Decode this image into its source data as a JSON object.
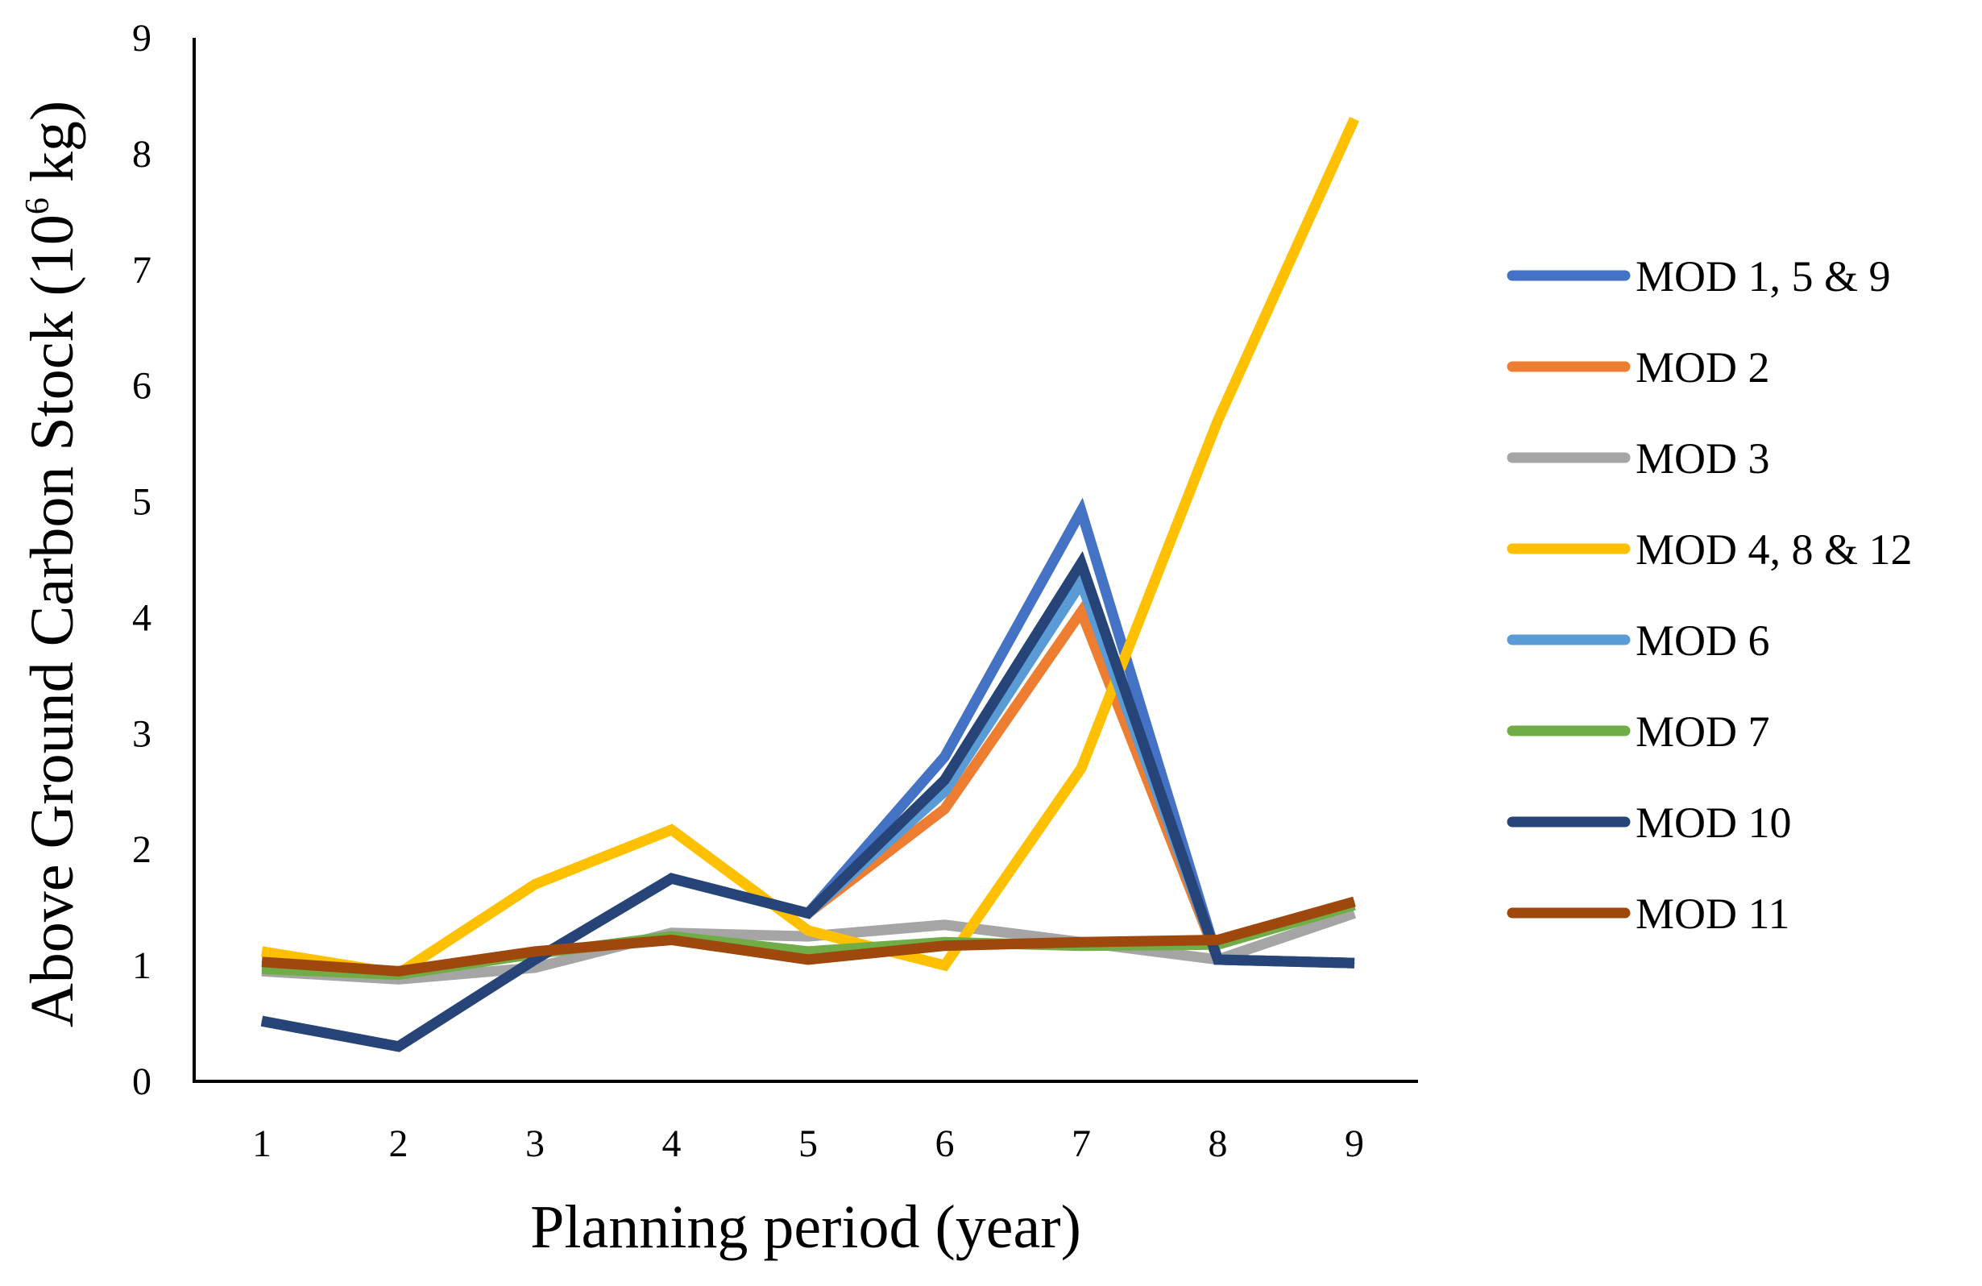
{
  "chart_data": {
    "type": "line",
    "title": "",
    "xlabel": "Planning period (year)",
    "ylabel": {
      "prefix": "Above Ground Carbon Stock (10",
      "superscript": "6",
      "suffix": " kg)"
    },
    "categories": [
      "1",
      "2",
      "3",
      "4",
      "5",
      "6",
      "7",
      "8",
      "9"
    ],
    "y_ticks": [
      "0",
      "1",
      "2",
      "3",
      "4",
      "5",
      "6",
      "7",
      "8",
      "9"
    ],
    "ylim": [
      0,
      9
    ],
    "grid": false,
    "legend_position": "right",
    "series": [
      {
        "name": "MOD 1, 5 & 9",
        "color": "#4472C4",
        "values": [
          0.52,
          0.3,
          1.05,
          1.75,
          1.45,
          2.8,
          4.92,
          1.05,
          1.02
        ]
      },
      {
        "name": "MOD 2",
        "color": "#ED7D31",
        "values": [
          0.52,
          0.3,
          1.05,
          1.75,
          1.45,
          2.35,
          4.05,
          1.05,
          1.02
        ]
      },
      {
        "name": "MOD 3",
        "color": "#A5A5A5",
        "values": [
          0.95,
          0.88,
          0.98,
          1.28,
          1.25,
          1.35,
          1.2,
          1.05,
          1.45
        ]
      },
      {
        "name": "MOD 4, 8 & 12",
        "color": "#FFC000",
        "values": [
          1.12,
          0.93,
          1.7,
          2.17,
          1.3,
          1.0,
          2.7,
          5.7,
          8.3
        ]
      },
      {
        "name": "MOD 6",
        "color": "#5B9BD5",
        "values": [
          0.52,
          0.3,
          1.05,
          1.75,
          1.45,
          2.5,
          4.3,
          1.05,
          1.02
        ]
      },
      {
        "name": "MOD 7",
        "color": "#70AD47",
        "values": [
          0.97,
          0.92,
          1.1,
          1.25,
          1.12,
          1.2,
          1.17,
          1.18,
          1.52
        ]
      },
      {
        "name": "MOD 10",
        "color": "#264478",
        "values": [
          0.52,
          0.3,
          1.05,
          1.75,
          1.45,
          2.6,
          4.47,
          1.05,
          1.02
        ]
      },
      {
        "name": "MOD 11",
        "color": "#9E480E",
        "values": [
          1.03,
          0.95,
          1.12,
          1.22,
          1.05,
          1.17,
          1.2,
          1.22,
          1.55
        ]
      }
    ]
  }
}
